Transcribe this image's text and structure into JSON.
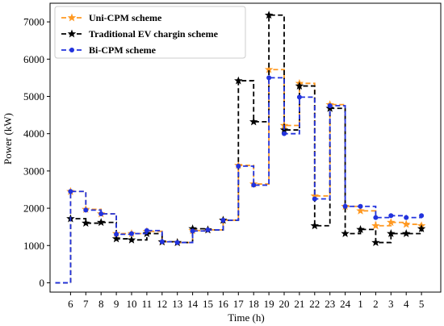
{
  "chart_data": {
    "type": "line",
    "step": "post",
    "xlabel": "Time (h)",
    "ylabel": "Power (kW)",
    "ylim": [
      -250,
      7500
    ],
    "yticks": [
      0,
      1000,
      2000,
      3000,
      4000,
      5000,
      6000,
      7000
    ],
    "xticks": [
      "6",
      "7",
      "8",
      "9",
      "10",
      "11",
      "12",
      "13",
      "14",
      "15",
      "16",
      "17",
      "18",
      "19",
      "20",
      "21",
      "22",
      "23",
      "24",
      "1",
      "2",
      "3",
      "4",
      "5"
    ],
    "grid": false,
    "legend": "top-left",
    "series": [
      {
        "name": "Uni-CPM scheme",
        "color": "#ff9922",
        "marker": "star",
        "values": [
          0,
          2450,
          1970,
          1850,
          1320,
          1320,
          1380,
          1100,
          1080,
          1400,
          1420,
          1680,
          3150,
          2650,
          5720,
          4220,
          5350,
          2330,
          4780,
          2050,
          1930,
          1530,
          1620,
          1570,
          1530
        ]
      },
      {
        "name": "Traditional EV chargin scheme",
        "color": "#000000",
        "marker": "star",
        "values": [
          0,
          1720,
          1600,
          1620,
          1180,
          1150,
          1320,
          1100,
          1080,
          1450,
          1420,
          1680,
          5420,
          4320,
          7180,
          4100,
          5280,
          1530,
          4680,
          1320,
          1430,
          1080,
          1320,
          1320,
          1450
        ]
      },
      {
        "name": "Bi-CPM scheme",
        "color": "#2233dd",
        "marker": "circle",
        "values": [
          0,
          2450,
          1950,
          1850,
          1300,
          1320,
          1400,
          1100,
          1080,
          1390,
          1420,
          1680,
          3130,
          2620,
          5500,
          4000,
          4980,
          2250,
          4750,
          2050,
          2050,
          1750,
          1800,
          1750,
          1800
        ]
      }
    ]
  }
}
